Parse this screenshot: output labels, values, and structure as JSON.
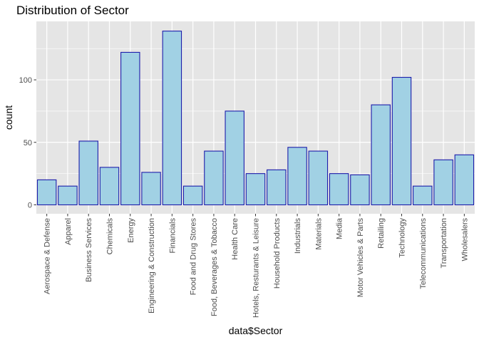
{
  "chart_data": {
    "type": "bar",
    "title": "Distribution of Sector",
    "xlabel": "data$Sector",
    "ylabel": "count",
    "categories": [
      "Aerospace & Defense",
      "Apparel",
      "Business Services",
      "Chemicals",
      "Energy",
      "Engineering & Construction",
      "Financials",
      "Food and Drug Stores",
      "Food, Beverages & Tobacco",
      "Health Care",
      "Hotels, Resturants & Leisure",
      "Household Products",
      "Industrials",
      "Materials",
      "Media",
      "Motor Vehicles & Parts",
      "Retailing",
      "Technology",
      "Telecommunications",
      "Transportation",
      "Wholesalers"
    ],
    "values": [
      20,
      15,
      51,
      30,
      122,
      26,
      139,
      15,
      43,
      75,
      25,
      28,
      46,
      43,
      25,
      24,
      80,
      102,
      15,
      36,
      40
    ],
    "ylim": [
      -7,
      146
    ],
    "yticks": [
      0,
      50,
      100
    ],
    "grid": true,
    "legend": "none",
    "colors": {
      "panel": "#e5e5e5",
      "grid": "#ffffff",
      "bar_fill": "#a1d1e4",
      "bar_stroke": "#1d1dab",
      "tick_text": "#4d4d4d",
      "tick_mark": "#333333"
    }
  }
}
